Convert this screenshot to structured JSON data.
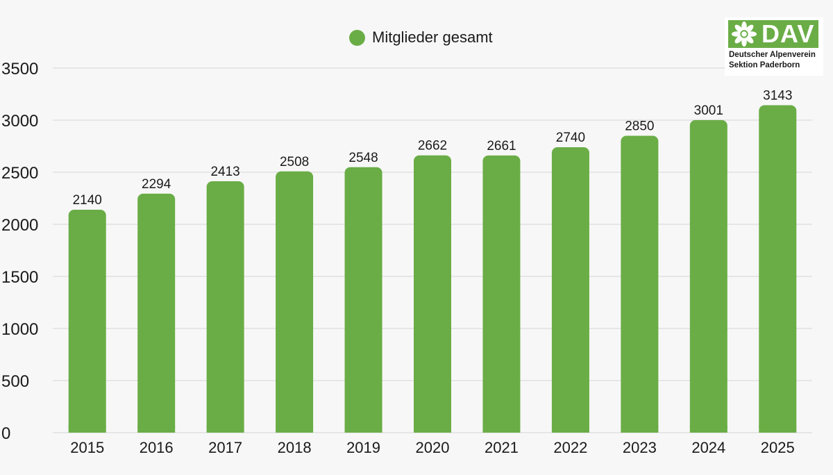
{
  "legend": {
    "label": "Mitglieder gesamt",
    "color": "#6aad46"
  },
  "logo": {
    "wordmark": "DAV",
    "line1": "Deutscher Alpenverein",
    "line2": "Sektion Paderborn",
    "icon": "edelweiss-icon"
  },
  "chart_data": {
    "type": "bar",
    "categories": [
      "2015",
      "2016",
      "2017",
      "2018",
      "2019",
      "2020",
      "2021",
      "2022",
      "2023",
      "2024",
      "2025"
    ],
    "series": [
      {
        "name": "Mitglieder gesamt",
        "values": [
          2140,
          2294,
          2413,
          2508,
          2548,
          2662,
          2661,
          2740,
          2850,
          3001,
          3143
        ],
        "color": "#6aad46"
      }
    ],
    "ylim": [
      0,
      3500
    ],
    "yticks": [
      0,
      500,
      1000,
      1500,
      2000,
      2500,
      3000,
      3500
    ],
    "grid": true,
    "legend_position": "top-center",
    "data_labels": true
  }
}
